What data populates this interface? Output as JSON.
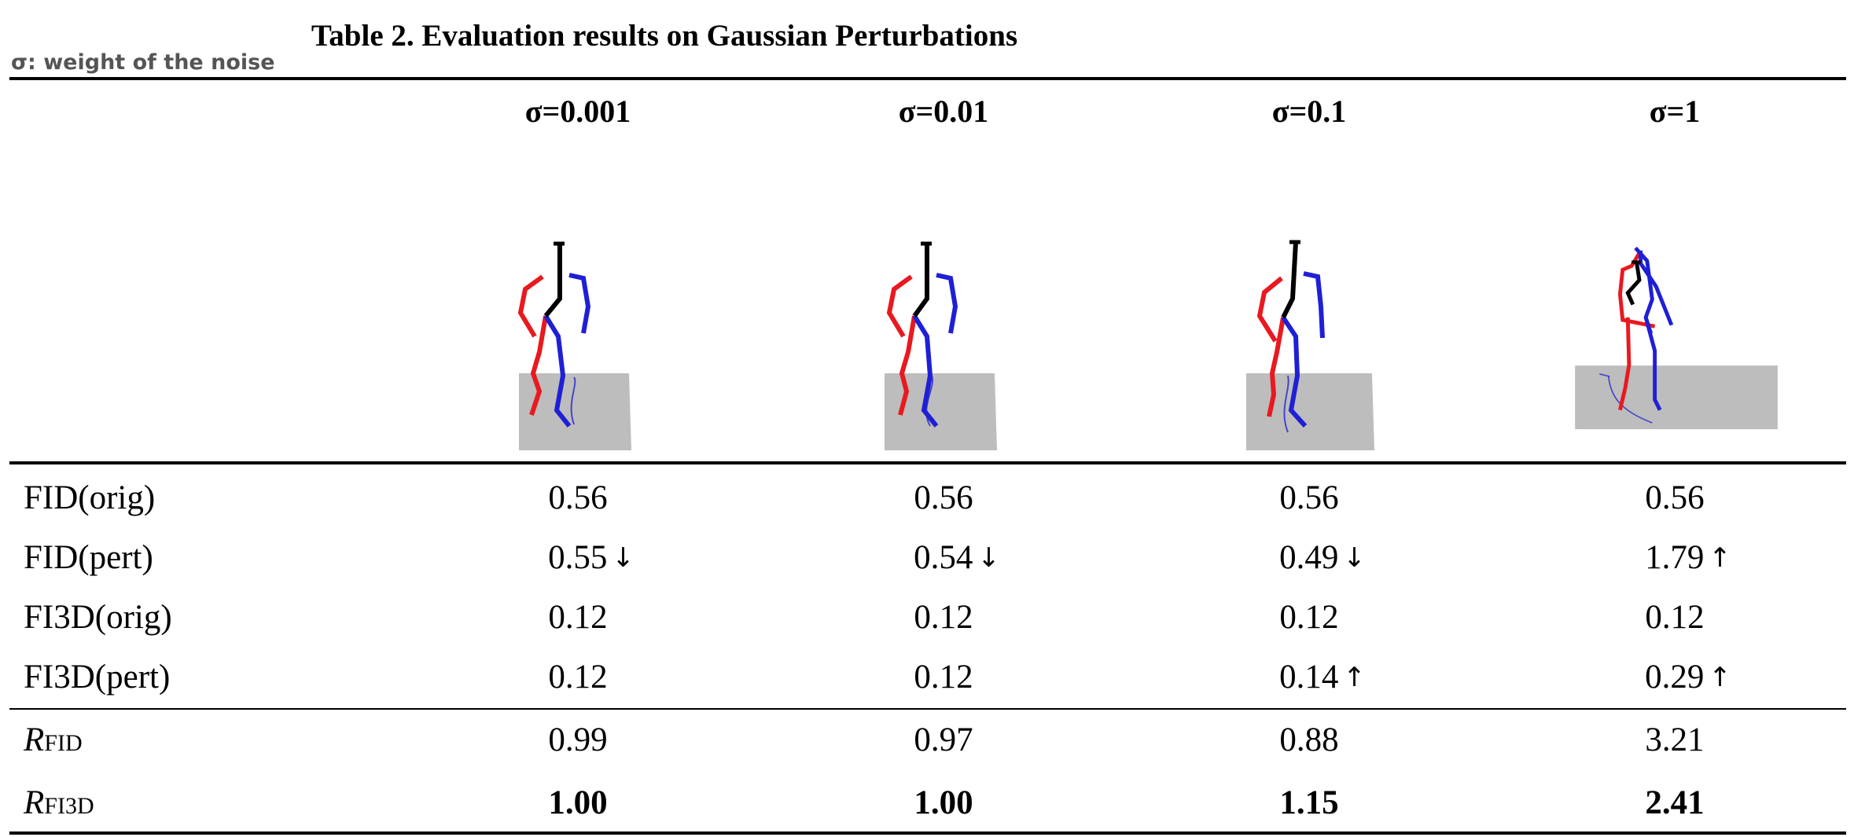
{
  "caption": "Table 2. Evaluation results on Gaussian Perturbations",
  "note": "σ: weight of the noise",
  "columns": [
    "σ=0.001",
    "σ=0.01",
    "σ=0.1",
    "σ=1"
  ],
  "rows": [
    {
      "label": "FID(orig)",
      "values": [
        "0.56",
        "0.56",
        "0.56",
        "0.56"
      ],
      "arrows": [
        "",
        "",
        "",
        ""
      ]
    },
    {
      "label": "FID(pert)",
      "values": [
        "0.55",
        "0.54",
        "0.49",
        "1.79"
      ],
      "arrows": [
        "↓",
        "↓",
        "↓",
        "↑"
      ]
    },
    {
      "label": "FI3D(orig)",
      "values": [
        "0.12",
        "0.12",
        "0.12",
        "0.12"
      ],
      "arrows": [
        "",
        "",
        "",
        ""
      ]
    },
    {
      "label": "FI3D(pert)",
      "values": [
        "0.12",
        "0.12",
        "0.14",
        "0.29"
      ],
      "arrows": [
        "",
        "",
        "↑",
        "↑"
      ]
    }
  ],
  "ratio_rows": [
    {
      "letter": "R",
      "sub": "FID",
      "values": [
        "0.99",
        "0.97",
        "0.88",
        "3.21"
      ],
      "bold": false
    },
    {
      "letter": "R",
      "sub": "FI3D",
      "values": [
        "1.00",
        "1.00",
        "1.15",
        "2.41"
      ],
      "bold": true
    }
  ],
  "colors": {
    "left_limb": "#e8191f",
    "right_limb": "#1f1fd6",
    "spine": "#000000",
    "floor": "#bdbdbd"
  }
}
